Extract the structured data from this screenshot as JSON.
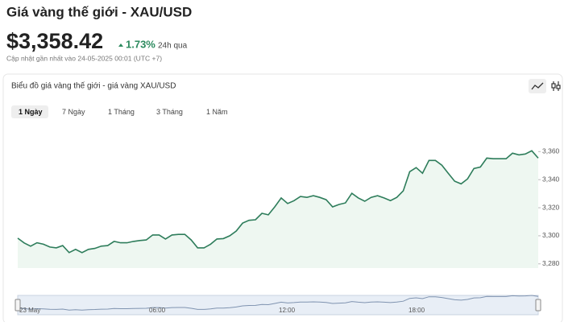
{
  "header": {
    "title": "Giá vàng thế giới - XAU/USD",
    "price": "$3,358.42",
    "change": "1.73%",
    "period": "24h qua",
    "updated": "Cập nhật gần nhất vào 24-05-2025 00:01 (UTC +7)"
  },
  "chart_data": {
    "type": "area",
    "title": "Biểu đồ giá vàng thế giới - giá vàng XAU/USD",
    "tabs": [
      "1 Ngày",
      "7 Ngày",
      "1 Tháng",
      "3 Tháng",
      "1 Năm"
    ],
    "selected_tab": 0,
    "values": [
      3298.3,
      3294.9,
      3292.6,
      3295,
      3294,
      3292,
      3291.4,
      3293,
      3288,
      3290.3,
      3288,
      3290.3,
      3291,
      3292.6,
      3293,
      3296,
      3295,
      3295,
      3296,
      3296.6,
      3297,
      3300.6,
      3300.6,
      3297.7,
      3300.6,
      3301,
      3301,
      3297,
      3291.4,
      3291.4,
      3294,
      3297.7,
      3298,
      3300,
      3303.4,
      3309,
      3311,
      3311.4,
      3316,
      3314.9,
      3320.6,
      3327,
      3323,
      3325,
      3328,
      3327.4,
      3328.6,
      3327.4,
      3325.7,
      3320.6,
      3322.3,
      3323.4,
      3330.3,
      3327,
      3324.6,
      3327.4,
      3328.6,
      3327,
      3325.1,
      3327.4,
      3332,
      3345.7,
      3348.6,
      3344.6,
      3353.7,
      3353.7,
      3350.3,
      3344.6,
      3338.9,
      3337,
      3340.6,
      3348,
      3349,
      3355.4,
      3354.9,
      3354.9,
      3354.9,
      3358.9,
      3357.7,
      3358.3,
      3360.6,
      3355.4
    ],
    "color": "#2e7d5b",
    "fill": "#eef7f1",
    "ylim": [
      3277,
      3382
    ],
    "yticks": [
      {
        "value": 3280,
        "label": "3,280"
      },
      {
        "value": 3300,
        "label": "3,300"
      },
      {
        "value": 3320,
        "label": "3,320"
      },
      {
        "value": 3340,
        "label": "3,340"
      },
      {
        "value": 3360,
        "label": "3,360"
      }
    ],
    "navigator": {
      "labels": [
        "23 May",
        "06:00",
        "12:00",
        "18:00"
      ]
    }
  }
}
